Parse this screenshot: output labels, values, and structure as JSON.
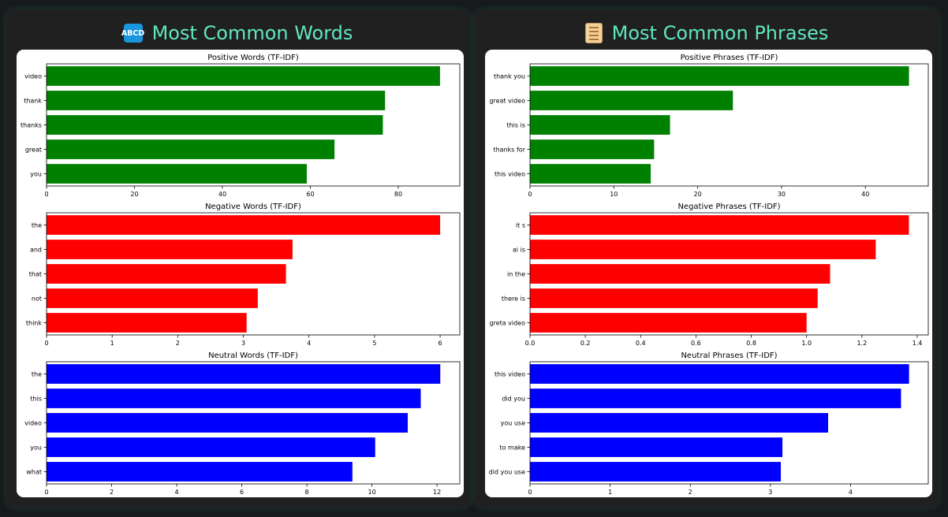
{
  "panels": [
    {
      "title": "Most Common Words",
      "icon": "abcd-icon",
      "icon_text": "ABCD"
    },
    {
      "title": "Most Common Phrases",
      "icon": "scroll-icon"
    }
  ],
  "chart_data": [
    {
      "type": "bar",
      "orientation": "horizontal",
      "title": "Positive Words (TF-IDF)",
      "categories": [
        "video",
        "thank",
        "thanks",
        "great",
        "you"
      ],
      "values": [
        89.5,
        77,
        76.5,
        65.5,
        59.2
      ],
      "xlim": [
        0,
        94
      ],
      "xticks": [
        0,
        20,
        40,
        60,
        80
      ],
      "color": "#008000"
    },
    {
      "type": "bar",
      "orientation": "horizontal",
      "title": "Negative Words (TF-IDF)",
      "categories": [
        "the",
        "and",
        "that",
        "not",
        "think"
      ],
      "values": [
        6.0,
        3.75,
        3.65,
        3.22,
        3.05
      ],
      "xlim": [
        0,
        6.3
      ],
      "xticks": [
        0,
        1,
        2,
        3,
        4,
        5,
        6
      ],
      "color": "#ff0000"
    },
    {
      "type": "bar",
      "orientation": "horizontal",
      "title": "Neutral Words (TF-IDF)",
      "categories": [
        "the",
        "this",
        "video",
        "you",
        "what"
      ],
      "values": [
        12.1,
        11.5,
        11.1,
        10.1,
        9.4
      ],
      "xlim": [
        0,
        12.7
      ],
      "xticks": [
        0,
        2,
        4,
        6,
        8,
        10,
        12
      ],
      "color": "#0000ff"
    },
    {
      "type": "bar",
      "orientation": "horizontal",
      "title": "Positive Phrases (TF-IDF)",
      "categories": [
        "thank you",
        "great video",
        "this is",
        "thanks for",
        "this video"
      ],
      "values": [
        45.2,
        24.2,
        16.7,
        14.8,
        14.4
      ],
      "xlim": [
        0,
        47.5
      ],
      "xticks": [
        0,
        10,
        20,
        30,
        40
      ],
      "color": "#008000"
    },
    {
      "type": "bar",
      "orientation": "horizontal",
      "title": "Negative Phrases (TF-IDF)",
      "categories": [
        "it s",
        "ai is",
        "in the",
        "there is",
        "greta video"
      ],
      "values": [
        1.37,
        1.25,
        1.085,
        1.04,
        1.0
      ],
      "xlim": [
        0,
        1.44
      ],
      "xticks": [
        0.0,
        0.2,
        0.4,
        0.6,
        0.8,
        1.0,
        1.2,
        1.4
      ],
      "xtick_labels": [
        "0.0",
        "0.2",
        "0.4",
        "0.6",
        "0.8",
        "1.0",
        "1.2",
        "1.4"
      ],
      "color": "#ff0000"
    },
    {
      "type": "bar",
      "orientation": "horizontal",
      "title": "Neutral Phrases (TF-IDF)",
      "categories": [
        "this video",
        "did you",
        "you use",
        "to make",
        "did you use"
      ],
      "values": [
        4.73,
        4.63,
        3.72,
        3.15,
        3.13
      ],
      "xlim": [
        0,
        4.97
      ],
      "xticks": [
        0,
        1,
        2,
        3,
        4
      ],
      "color": "#0000ff"
    }
  ]
}
